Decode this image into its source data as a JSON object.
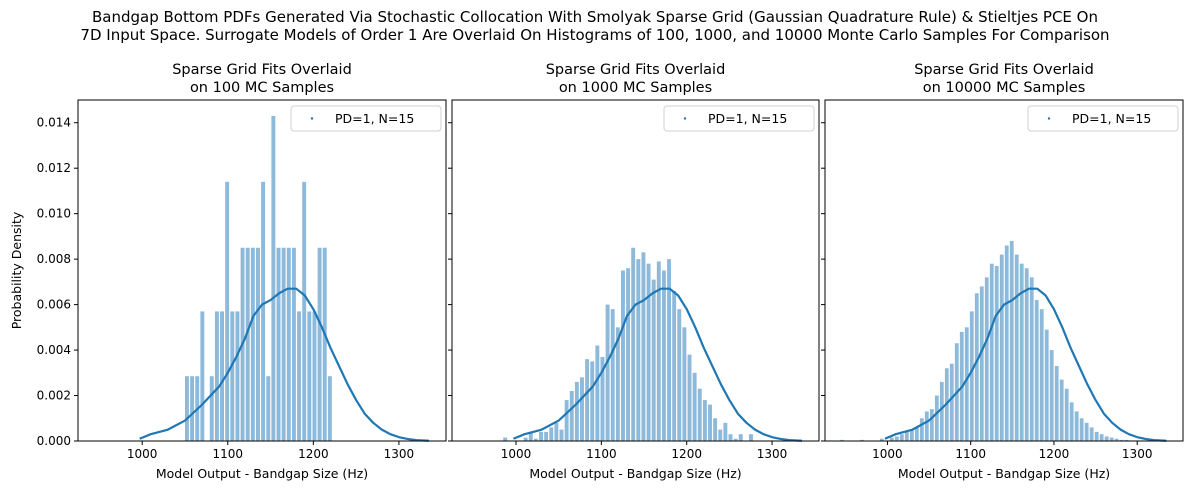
{
  "figure": {
    "suptitle_lines": [
      "Bandgap Bottom PDFs Generated Via Stochastic Collocation With Smolyak Sparse Grid (Gaussian Quadrature Rule) & Stieltjes PCE On",
      "7D Input Space. Surrogate Models of Order 1 Are Overlaid On Histograms of 100, 1000, and 10000 Monte Carlo Samples For Comparison"
    ]
  },
  "colors": {
    "hist": "#8db9da",
    "line": "#1f77b4",
    "axis": "#000000"
  },
  "chart_data": [
    {
      "type": "bar",
      "title_lines": [
        "Sparse Grid Fits Overlaid",
        "on 100 MC Samples"
      ],
      "xlabel": "Model Output - Bandgap Size (Hz)",
      "ylabel": "Probability Density",
      "xlim": [
        925,
        1355
      ],
      "ylim": [
        0,
        0.015
      ],
      "xticks": [
        1000,
        1100,
        1200,
        1300
      ],
      "yticks": [
        0.0,
        0.002,
        0.004,
        0.006,
        0.008,
        0.01,
        0.012,
        0.014
      ],
      "ytick_labels": [
        "0.000",
        "0.002",
        "0.004",
        "0.006",
        "0.008",
        "0.010",
        "0.012",
        "0.014"
      ],
      "legend": {
        "label": "PD=1, N=15",
        "position": "top-right"
      },
      "histogram": [
        {
          "x0": 1050,
          "x1": 1056,
          "y": 0.00285
        },
        {
          "x0": 1056,
          "x1": 1062,
          "y": 0.00285
        },
        {
          "x0": 1062,
          "x1": 1068,
          "y": 0.00285
        },
        {
          "x0": 1068,
          "x1": 1074,
          "y": 0.0057
        },
        {
          "x0": 1079,
          "x1": 1085,
          "y": 0.00285
        },
        {
          "x0": 1085,
          "x1": 1091,
          "y": 0.0057
        },
        {
          "x0": 1091,
          "x1": 1097,
          "y": 0.0057
        },
        {
          "x0": 1097,
          "x1": 1103,
          "y": 0.0114
        },
        {
          "x0": 1103,
          "x1": 1109,
          "y": 0.0057
        },
        {
          "x0": 1109,
          "x1": 1115,
          "y": 0.0057
        },
        {
          "x0": 1115,
          "x1": 1121,
          "y": 0.0085
        },
        {
          "x0": 1121,
          "x1": 1127,
          "y": 0.0085
        },
        {
          "x0": 1127,
          "x1": 1133,
          "y": 0.0085
        },
        {
          "x0": 1133,
          "x1": 1139,
          "y": 0.0085
        },
        {
          "x0": 1139,
          "x1": 1145,
          "y": 0.0114
        },
        {
          "x0": 1145,
          "x1": 1151,
          "y": 0.00285
        },
        {
          "x0": 1151,
          "x1": 1157,
          "y": 0.0143
        },
        {
          "x0": 1157,
          "x1": 1163,
          "y": 0.0085
        },
        {
          "x0": 1163,
          "x1": 1169,
          "y": 0.0085
        },
        {
          "x0": 1169,
          "x1": 1175,
          "y": 0.0085
        },
        {
          "x0": 1175,
          "x1": 1181,
          "y": 0.0085
        },
        {
          "x0": 1181,
          "x1": 1187,
          "y": 0.0057
        },
        {
          "x0": 1187,
          "x1": 1193,
          "y": 0.0114
        },
        {
          "x0": 1193,
          "x1": 1199,
          "y": 0.0057
        },
        {
          "x0": 1199,
          "x1": 1205,
          "y": 0.0057
        },
        {
          "x0": 1205,
          "x1": 1211,
          "y": 0.0085
        },
        {
          "x0": 1211,
          "x1": 1217,
          "y": 0.0085
        },
        {
          "x0": 1217,
          "x1": 1223,
          "y": 0.00285
        }
      ],
      "series": [
        {
          "name": "PD=1, N=15",
          "x": [
            997,
            1010,
            1030,
            1050,
            1070,
            1090,
            1100,
            1110,
            1120,
            1130,
            1140,
            1150,
            1160,
            1170,
            1180,
            1190,
            1200,
            1210,
            1220,
            1230,
            1240,
            1250,
            1260,
            1270,
            1280,
            1290,
            1300,
            1310,
            1320,
            1335
          ],
          "y": [
            0.0001,
            0.0003,
            0.0005,
            0.0009,
            0.0016,
            0.0024,
            0.003,
            0.0037,
            0.0045,
            0.0055,
            0.006,
            0.0062,
            0.0065,
            0.0067,
            0.0067,
            0.0064,
            0.0058,
            0.005,
            0.0041,
            0.0033,
            0.0025,
            0.0018,
            0.0012,
            0.0008,
            0.0005,
            0.0003,
            0.00017,
            9e-05,
            4e-05,
            1e-05
          ]
        }
      ]
    },
    {
      "type": "bar",
      "title_lines": [
        "Sparse Grid Fits Overlaid",
        "on 1000 MC Samples"
      ],
      "xlabel": "Model Output - Bandgap Size (Hz)",
      "ylabel": "",
      "xlim": [
        925,
        1355
      ],
      "ylim": [
        0,
        0.015
      ],
      "xticks": [
        1000,
        1100,
        1200,
        1300
      ],
      "yticks": [
        0.0,
        0.002,
        0.004,
        0.006,
        0.008,
        0.01,
        0.012,
        0.014
      ],
      "ytick_labels": [],
      "legend": {
        "label": "PD=1, N=15",
        "position": "top-right"
      },
      "histogram": [
        {
          "x0": 985,
          "x1": 991,
          "y": 0.00015
        },
        {
          "x0": 1009,
          "x1": 1015,
          "y": 0.00015
        },
        {
          "x0": 1015,
          "x1": 1021,
          "y": 0.0004
        },
        {
          "x0": 1021,
          "x1": 1027,
          "y": 0.0001
        },
        {
          "x0": 1027,
          "x1": 1033,
          "y": 0.0004
        },
        {
          "x0": 1033,
          "x1": 1039,
          "y": 0.0004
        },
        {
          "x0": 1039,
          "x1": 1045,
          "y": 0.0006
        },
        {
          "x0": 1045,
          "x1": 1051,
          "y": 0.0008
        },
        {
          "x0": 1051,
          "x1": 1057,
          "y": 0.0005
        },
        {
          "x0": 1057,
          "x1": 1063,
          "y": 0.0018
        },
        {
          "x0": 1063,
          "x1": 1069,
          "y": 0.0022
        },
        {
          "x0": 1069,
          "x1": 1075,
          "y": 0.0026
        },
        {
          "x0": 1075,
          "x1": 1081,
          "y": 0.0028
        },
        {
          "x0": 1081,
          "x1": 1087,
          "y": 0.0036
        },
        {
          "x0": 1087,
          "x1": 1093,
          "y": 0.0035
        },
        {
          "x0": 1093,
          "x1": 1099,
          "y": 0.0042
        },
        {
          "x0": 1099,
          "x1": 1105,
          "y": 0.0037
        },
        {
          "x0": 1105,
          "x1": 1111,
          "y": 0.006
        },
        {
          "x0": 1111,
          "x1": 1117,
          "y": 0.0058
        },
        {
          "x0": 1117,
          "x1": 1123,
          "y": 0.005
        },
        {
          "x0": 1123,
          "x1": 1129,
          "y": 0.0075
        },
        {
          "x0": 1129,
          "x1": 1135,
          "y": 0.0076
        },
        {
          "x0": 1135,
          "x1": 1141,
          "y": 0.0085
        },
        {
          "x0": 1141,
          "x1": 1147,
          "y": 0.008
        },
        {
          "x0": 1147,
          "x1": 1153,
          "y": 0.0083
        },
        {
          "x0": 1153,
          "x1": 1159,
          "y": 0.0078
        },
        {
          "x0": 1159,
          "x1": 1165,
          "y": 0.0071
        },
        {
          "x0": 1165,
          "x1": 1171,
          "y": 0.0079
        },
        {
          "x0": 1171,
          "x1": 1177,
          "y": 0.0075
        },
        {
          "x0": 1177,
          "x1": 1183,
          "y": 0.008
        },
        {
          "x0": 1183,
          "x1": 1189,
          "y": 0.0066
        },
        {
          "x0": 1189,
          "x1": 1195,
          "y": 0.0058
        },
        {
          "x0": 1195,
          "x1": 1201,
          "y": 0.005
        },
        {
          "x0": 1201,
          "x1": 1207,
          "y": 0.0038
        },
        {
          "x0": 1207,
          "x1": 1213,
          "y": 0.003
        },
        {
          "x0": 1213,
          "x1": 1219,
          "y": 0.0023
        },
        {
          "x0": 1219,
          "x1": 1225,
          "y": 0.0018
        },
        {
          "x0": 1225,
          "x1": 1231,
          "y": 0.0016
        },
        {
          "x0": 1231,
          "x1": 1237,
          "y": 0.001
        },
        {
          "x0": 1237,
          "x1": 1243,
          "y": 0.0005
        },
        {
          "x0": 1243,
          "x1": 1249,
          "y": 0.0008
        },
        {
          "x0": 1249,
          "x1": 1255,
          "y": 0.0003
        },
        {
          "x0": 1255,
          "x1": 1261,
          "y": 0.0001
        },
        {
          "x0": 1261,
          "x1": 1267,
          "y": 0.0003
        },
        {
          "x0": 1273,
          "x1": 1279,
          "y": 0.0003
        }
      ],
      "series": [
        {
          "name": "PD=1, N=15",
          "x": [
            997,
            1010,
            1030,
            1050,
            1070,
            1090,
            1100,
            1110,
            1120,
            1130,
            1140,
            1150,
            1160,
            1170,
            1180,
            1190,
            1200,
            1210,
            1220,
            1230,
            1240,
            1250,
            1260,
            1270,
            1280,
            1290,
            1300,
            1310,
            1320,
            1335
          ],
          "y": [
            0.0001,
            0.0003,
            0.0005,
            0.0009,
            0.0016,
            0.0024,
            0.003,
            0.0037,
            0.0045,
            0.0055,
            0.006,
            0.0062,
            0.0065,
            0.0067,
            0.0067,
            0.0064,
            0.0058,
            0.005,
            0.0041,
            0.0033,
            0.0025,
            0.0018,
            0.0012,
            0.0008,
            0.0005,
            0.0003,
            0.00017,
            9e-05,
            4e-05,
            1e-05
          ]
        }
      ]
    },
    {
      "type": "bar",
      "title_lines": [
        "Sparse Grid Fits Overlaid",
        "on 10000 MC Samples"
      ],
      "xlabel": "Model Output - Bandgap Size (Hz)",
      "ylabel": "",
      "xlim": [
        925,
        1355
      ],
      "ylim": [
        0,
        0.015
      ],
      "xticks": [
        1000,
        1100,
        1200,
        1300
      ],
      "yticks": [
        0.0,
        0.002,
        0.004,
        0.006,
        0.008,
        0.01,
        0.012,
        0.014
      ],
      "ytick_labels": [],
      "legend": {
        "label": "PD=1, N=15",
        "position": "top-right"
      },
      "histogram": [
        {
          "x0": 943,
          "x1": 949,
          "y": 5e-05
        },
        {
          "x0": 967,
          "x1": 973,
          "y": 5e-05
        },
        {
          "x0": 991,
          "x1": 997,
          "y": 0.0001
        },
        {
          "x0": 1003,
          "x1": 1009,
          "y": 0.00015
        },
        {
          "x0": 1009,
          "x1": 1015,
          "y": 0.0002
        },
        {
          "x0": 1015,
          "x1": 1021,
          "y": 0.0003
        },
        {
          "x0": 1021,
          "x1": 1027,
          "y": 0.0004
        },
        {
          "x0": 1027,
          "x1": 1033,
          "y": 0.0005
        },
        {
          "x0": 1033,
          "x1": 1039,
          "y": 0.0006
        },
        {
          "x0": 1039,
          "x1": 1045,
          "y": 0.001
        },
        {
          "x0": 1045,
          "x1": 1051,
          "y": 0.0013
        },
        {
          "x0": 1051,
          "x1": 1057,
          "y": 0.0014
        },
        {
          "x0": 1057,
          "x1": 1063,
          "y": 0.002
        },
        {
          "x0": 1063,
          "x1": 1069,
          "y": 0.0026
        },
        {
          "x0": 1069,
          "x1": 1075,
          "y": 0.0032
        },
        {
          "x0": 1075,
          "x1": 1081,
          "y": 0.0034
        },
        {
          "x0": 1081,
          "x1": 1087,
          "y": 0.0043
        },
        {
          "x0": 1087,
          "x1": 1093,
          "y": 0.0048
        },
        {
          "x0": 1093,
          "x1": 1099,
          "y": 0.005
        },
        {
          "x0": 1099,
          "x1": 1105,
          "y": 0.0057
        },
        {
          "x0": 1105,
          "x1": 1111,
          "y": 0.0065
        },
        {
          "x0": 1111,
          "x1": 1117,
          "y": 0.0068
        },
        {
          "x0": 1117,
          "x1": 1123,
          "y": 0.0072
        },
        {
          "x0": 1123,
          "x1": 1129,
          "y": 0.0078
        },
        {
          "x0": 1129,
          "x1": 1135,
          "y": 0.0077
        },
        {
          "x0": 1135,
          "x1": 1141,
          "y": 0.0082
        },
        {
          "x0": 1141,
          "x1": 1147,
          "y": 0.0086
        },
        {
          "x0": 1147,
          "x1": 1153,
          "y": 0.0088
        },
        {
          "x0": 1153,
          "x1": 1159,
          "y": 0.0082
        },
        {
          "x0": 1159,
          "x1": 1165,
          "y": 0.0078
        },
        {
          "x0": 1165,
          "x1": 1171,
          "y": 0.0076
        },
        {
          "x0": 1171,
          "x1": 1177,
          "y": 0.0072
        },
        {
          "x0": 1177,
          "x1": 1183,
          "y": 0.0062
        },
        {
          "x0": 1183,
          "x1": 1189,
          "y": 0.0058
        },
        {
          "x0": 1189,
          "x1": 1195,
          "y": 0.0049
        },
        {
          "x0": 1195,
          "x1": 1201,
          "y": 0.004
        },
        {
          "x0": 1201,
          "x1": 1207,
          "y": 0.0033
        },
        {
          "x0": 1207,
          "x1": 1213,
          "y": 0.0027
        },
        {
          "x0": 1213,
          "x1": 1219,
          "y": 0.0023
        },
        {
          "x0": 1219,
          "x1": 1225,
          "y": 0.0017
        },
        {
          "x0": 1225,
          "x1": 1231,
          "y": 0.0013
        },
        {
          "x0": 1231,
          "x1": 1237,
          "y": 0.001
        },
        {
          "x0": 1237,
          "x1": 1243,
          "y": 0.0008
        },
        {
          "x0": 1243,
          "x1": 1249,
          "y": 0.0006
        },
        {
          "x0": 1249,
          "x1": 1255,
          "y": 0.0004
        },
        {
          "x0": 1255,
          "x1": 1261,
          "y": 0.0003
        },
        {
          "x0": 1261,
          "x1": 1267,
          "y": 0.0002
        },
        {
          "x0": 1267,
          "x1": 1273,
          "y": 0.00015
        },
        {
          "x0": 1273,
          "x1": 1279,
          "y": 0.0001
        },
        {
          "x0": 1279,
          "x1": 1285,
          "y": 5e-05
        },
        {
          "x0": 1285,
          "x1": 1291,
          "y": 5e-05
        }
      ],
      "series": [
        {
          "name": "PD=1, N=15",
          "x": [
            997,
            1010,
            1030,
            1050,
            1070,
            1090,
            1100,
            1110,
            1120,
            1130,
            1140,
            1150,
            1160,
            1170,
            1180,
            1190,
            1200,
            1210,
            1220,
            1230,
            1240,
            1250,
            1260,
            1270,
            1280,
            1290,
            1300,
            1310,
            1320,
            1335
          ],
          "y": [
            0.0001,
            0.0003,
            0.0005,
            0.0009,
            0.0016,
            0.0024,
            0.003,
            0.0037,
            0.0045,
            0.0055,
            0.006,
            0.0062,
            0.0065,
            0.0067,
            0.0067,
            0.0064,
            0.0058,
            0.005,
            0.0041,
            0.0033,
            0.0025,
            0.0018,
            0.0012,
            0.0008,
            0.0005,
            0.0003,
            0.00017,
            9e-05,
            4e-05,
            1e-05
          ]
        }
      ]
    }
  ]
}
